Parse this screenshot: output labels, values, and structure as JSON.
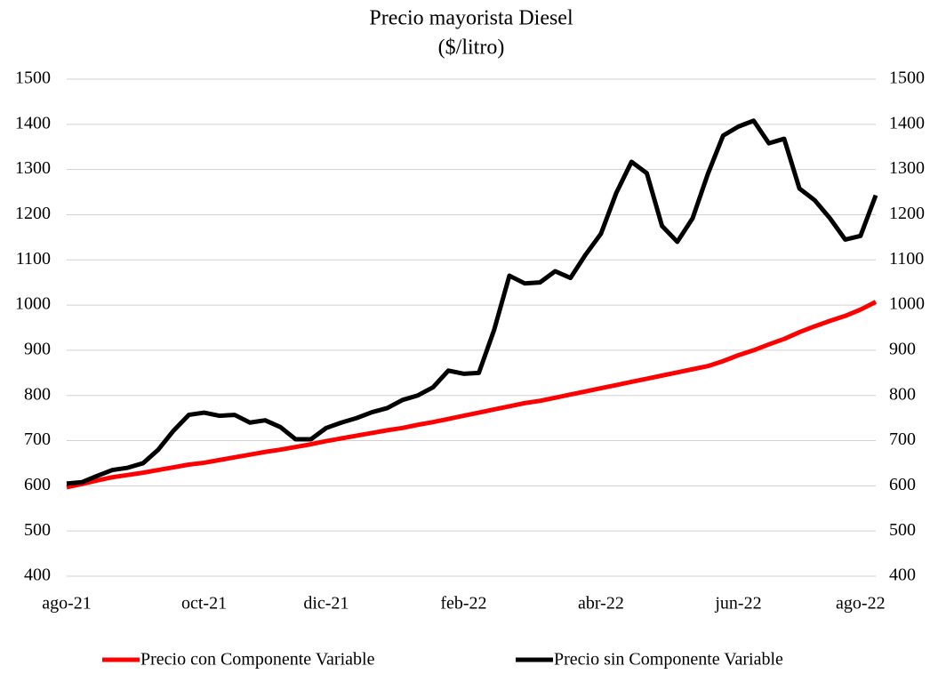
{
  "chart_data": {
    "type": "line",
    "title": "Precio mayorista Diesel",
    "subtitle": "($/litro)",
    "categories": [
      "ago-21",
      null,
      null,
      null,
      null,
      null,
      null,
      null,
      null,
      "oct-21",
      null,
      null,
      null,
      null,
      null,
      null,
      null,
      "dic-21",
      null,
      null,
      null,
      null,
      null,
      null,
      null,
      null,
      "feb-22",
      null,
      null,
      null,
      null,
      null,
      null,
      null,
      null,
      "abr-22",
      null,
      null,
      null,
      null,
      null,
      null,
      null,
      null,
      "jun-22",
      null,
      null,
      null,
      null,
      null,
      null,
      null,
      "ago-22",
      null
    ],
    "series": [
      {
        "name": "Precio con Componente Variable",
        "color": "#ff0000",
        "values": [
          597,
          604,
          612,
          619,
          624,
          629,
          635,
          641,
          647,
          651,
          657,
          663,
          669,
          675,
          680,
          686,
          692,
          699,
          705,
          711,
          717,
          723,
          728,
          735,
          741,
          748,
          755,
          762,
          769,
          776,
          783,
          788,
          795,
          802,
          809,
          816,
          823,
          830,
          837,
          844,
          851,
          858,
          865,
          876,
          889,
          900,
          913,
          925,
          940,
          953,
          965,
          976,
          990,
          1007
        ]
      },
      {
        "name": "Precio sin Componente Variable",
        "color": "#000000",
        "values": [
          605,
          608,
          622,
          635,
          640,
          650,
          680,
          722,
          757,
          762,
          755,
          757,
          740,
          745,
          730,
          703,
          703,
          728,
          740,
          750,
          763,
          772,
          790,
          800,
          818,
          855,
          848,
          850,
          945,
          1065,
          1048,
          1050,
          1075,
          1060,
          1112,
          1158,
          1248,
          1317,
          1292,
          1175,
          1140,
          1192,
          1290,
          1375,
          1395,
          1408,
          1358,
          1368,
          1258,
          1232,
          1192,
          1145,
          1153,
          1243
        ]
      }
    ],
    "ylim": [
      400,
      1500
    ],
    "yticks": [
      400,
      500,
      600,
      700,
      800,
      900,
      1000,
      1100,
      1200,
      1300,
      1400,
      1500
    ],
    "y2lim": [
      400,
      1500
    ],
    "y2ticks": [
      400,
      500,
      600,
      700,
      800,
      900,
      1000,
      1100,
      1200,
      1300,
      1400,
      1500
    ],
    "grid": true,
    "legend": "bottom"
  }
}
